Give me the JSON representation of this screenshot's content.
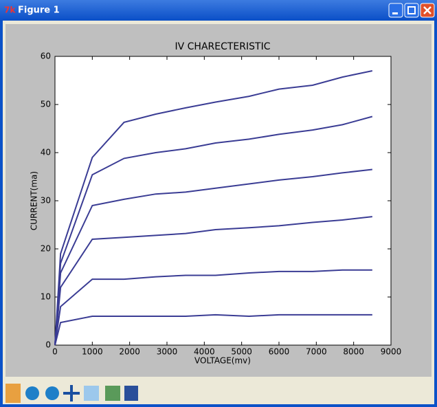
{
  "window": {
    "title": "Figure 1"
  },
  "chart_data": {
    "type": "line",
    "title": "IV CHARECTERISTIC",
    "x_label": "VOLTAGE(mv)",
    "y_label": "CURRENT(ma)",
    "x": [
      0,
      150,
      1000,
      1850,
      2700,
      3500,
      4300,
      5200,
      6000,
      6900,
      7700,
      8500
    ],
    "series": [
      {
        "color": "#3a3c94",
        "values": [
          0,
          4.7,
          6,
          6,
          6,
          6,
          6.3,
          6,
          6.3,
          6.3,
          6.3,
          6.3
        ]
      },
      {
        "color": "#3a3c94",
        "values": [
          0,
          8,
          13.7,
          13.7,
          14.2,
          14.5,
          14.5,
          15,
          15.3,
          15.3,
          15.6,
          15.6
        ]
      },
      {
        "color": "#3a3c94",
        "values": [
          0,
          12,
          22,
          22.4,
          22.8,
          23.2,
          24,
          24.4,
          24.8,
          25.5,
          26,
          26.7
        ]
      },
      {
        "color": "#3a3c94",
        "values": [
          0,
          15,
          29,
          30.3,
          31.4,
          31.8,
          32.6,
          33.5,
          34.3,
          35,
          35.8,
          36.5
        ]
      },
      {
        "color": "#3a3c94",
        "values": [
          0,
          17,
          35.4,
          38.8,
          40,
          40.8,
          42,
          42.8,
          43.8,
          44.7,
          45.8,
          47.5
        ]
      },
      {
        "color": "#3a3c94",
        "values": [
          0,
          19,
          39,
          46.3,
          48,
          49.3,
          50.5,
          51.7,
          53.2,
          54,
          55.7,
          57
        ]
      }
    ],
    "xlim": [
      0,
      9000
    ],
    "xticks": [
      0,
      1000,
      2000,
      3000,
      4000,
      5000,
      6000,
      7000,
      8000,
      9000
    ],
    "ylim": [
      0,
      60
    ],
    "yticks": [
      0,
      10,
      20,
      30,
      40,
      50,
      60
    ],
    "grid": false
  }
}
